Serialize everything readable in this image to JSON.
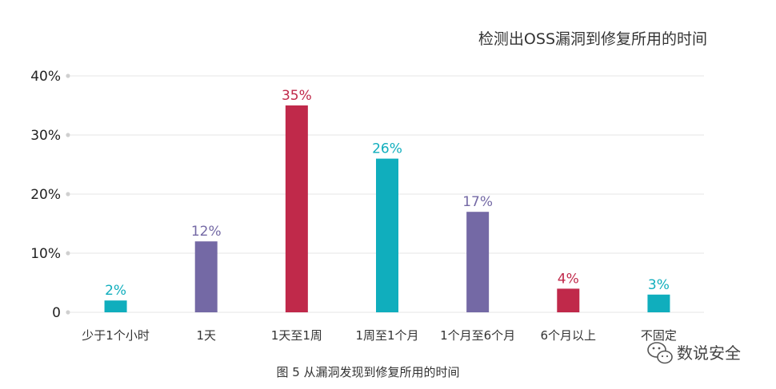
{
  "chart_data": {
    "type": "bar",
    "title": "检测出OSS漏洞到修复所用的时间",
    "caption": "图 5 从漏洞发现到修复所用的时间",
    "categories": [
      "少于1个小时",
      "1天",
      "1天至1周",
      "1周至1个月",
      "1个月至6个月",
      "6个月以上",
      "不固定"
    ],
    "values": [
      2,
      12,
      35,
      26,
      17,
      4,
      3
    ],
    "data_labels": [
      "2%",
      "12%",
      "35%",
      "26%",
      "17%",
      "4%",
      "3%"
    ],
    "bar_colors": [
      "#10aebd",
      "#7469a5",
      "#c0294a",
      "#10aebd",
      "#7469a5",
      "#c0294a",
      "#10aebd"
    ],
    "yticks": [
      0,
      10,
      20,
      30,
      40
    ],
    "ytick_labels": [
      "0",
      "10%",
      "20%",
      "30%",
      "40%"
    ],
    "ylim": [
      0,
      40
    ],
    "grid": true,
    "xlabel": "",
    "ylabel": ""
  },
  "watermark": {
    "text": "数说安全",
    "icon": "wechat-icon"
  },
  "colors": {
    "grid": "#e6e6e6",
    "axis_dot": "#cfcfcf"
  }
}
